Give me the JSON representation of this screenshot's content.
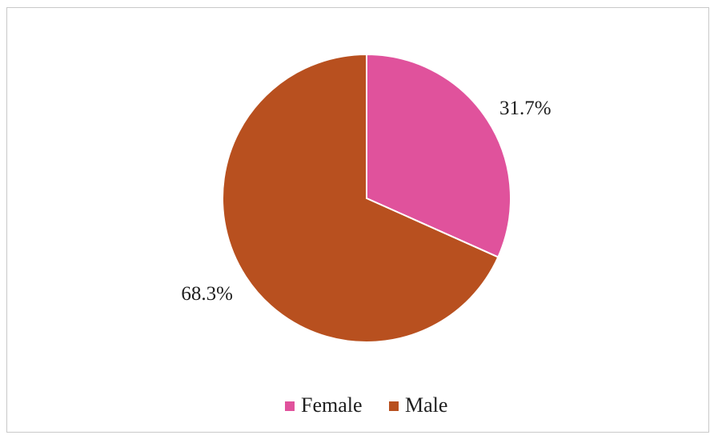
{
  "chart_data": {
    "type": "pie",
    "title": "",
    "categories": [
      "Female",
      "Male"
    ],
    "values": [
      31.7,
      68.3
    ],
    "labels": [
      "31.7%",
      "68.3%"
    ],
    "colors": [
      "#e0529c",
      "#b8501f"
    ],
    "start": "12 o'clock, clockwise",
    "legend": {
      "placement": "bottom",
      "items": [
        "Female",
        "Male"
      ]
    }
  }
}
